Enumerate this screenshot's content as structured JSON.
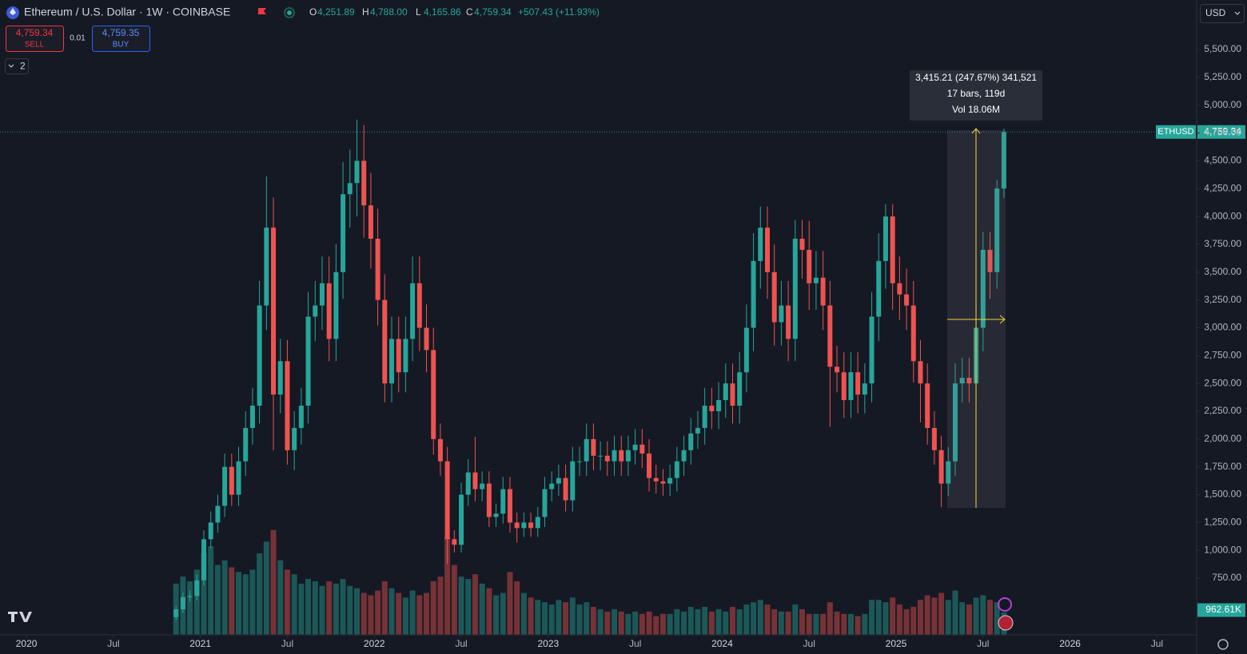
{
  "header": {
    "title": "Ethereum / U.S. Dollar · 1W · COINBASE",
    "ohlc_keys": [
      "O",
      "H",
      "L",
      "C"
    ],
    "ohlc_labels": [
      "4,251.89",
      "4,788.00",
      "4,165.86",
      "4,759.34"
    ],
    "change_label": "+507.43 (+11.93%)"
  },
  "trade": {
    "sell_price": "4,759.34",
    "sell": "SELL",
    "spread": "0.01",
    "buy_price": "4,759.35",
    "buy": "BUY"
  },
  "indicator_count": "2",
  "currency": "USD",
  "measure": [
    "3,415.21 (247.67%) 341,521",
    "17 bars, 119d",
    "Vol 18.06M"
  ],
  "chart_data": {
    "type": "candlestick",
    "symbol": "ETHUSD",
    "last_price_label": "4,759.34",
    "last_volume_label": "962.61K",
    "up_color": "#26a69a",
    "down_color": "#ef5350",
    "grid": false,
    "xlim": [
      2019.848,
      2026.728
    ],
    "ylim": [
      241,
      5945
    ],
    "volume_ylim": [
      0,
      4800
    ],
    "xticks": [
      2020,
      {
        "value": 2020.5,
        "label": "Jul"
      },
      2021,
      {
        "value": 2021.5,
        "label": "Jul"
      },
      2022,
      {
        "value": 2022.5,
        "label": "Jul"
      },
      2023,
      {
        "value": 2023.5,
        "label": "Jul"
      },
      2024,
      {
        "value": 2024.5,
        "label": "Jul"
      },
      2025,
      {
        "value": 2025.5,
        "label": "Jul"
      },
      2026,
      {
        "value": 2026.5,
        "label": "Jul"
      }
    ],
    "yticks": [
      {
        "value": 750,
        "label": "750.00"
      },
      {
        "value": 1000,
        "label": "1,000.00"
      },
      {
        "value": 1250,
        "label": "1,250.00"
      },
      {
        "value": 1500,
        "label": "1,500.00"
      },
      {
        "value": 1750,
        "label": "1,750.00"
      },
      {
        "value": 2000,
        "label": "2,000.00"
      },
      {
        "value": 2250,
        "label": "2,250.00"
      },
      {
        "value": 2500,
        "label": "2,500.00"
      },
      {
        "value": 2750,
        "label": "2,750.00"
      },
      {
        "value": 3000,
        "label": "3,000.00"
      },
      {
        "value": 3250,
        "label": "3,250.00"
      },
      {
        "value": 3500,
        "label": "3,500.00"
      },
      {
        "value": 3750,
        "label": "3,750.00"
      },
      {
        "value": 4000,
        "label": "4,000.00"
      },
      {
        "value": 4250,
        "label": "4,250.00"
      },
      {
        "value": 4500,
        "label": "4,500.00"
      },
      {
        "value": 4750,
        "label": "4,750.00"
      },
      {
        "value": 5000,
        "label": "5,000.00"
      },
      {
        "value": 5250,
        "label": "5,250.00"
      },
      {
        "value": 5500,
        "label": "5,500.00"
      }
    ],
    "x": [
      2020.86,
      2020.9,
      2020.94,
      2020.98,
      2021.02,
      2021.06,
      2021.1,
      2021.14,
      2021.18,
      2021.22,
      2021.26,
      2021.3,
      2021.34,
      2021.38,
      2021.42,
      2021.46,
      2021.5,
      2021.54,
      2021.58,
      2021.62,
      2021.66,
      2021.7,
      2021.74,
      2021.78,
      2021.82,
      2021.86,
      2021.9,
      2021.94,
      2021.98,
      2022.02,
      2022.06,
      2022.1,
      2022.14,
      2022.18,
      2022.22,
      2022.26,
      2022.3,
      2022.34,
      2022.38,
      2022.42,
      2022.46,
      2022.5,
      2022.54,
      2022.58,
      2022.62,
      2022.66,
      2022.7,
      2022.74,
      2022.78,
      2022.82,
      2022.86,
      2022.9,
      2022.94,
      2022.98,
      2023.02,
      2023.06,
      2023.1,
      2023.14,
      2023.18,
      2023.22,
      2023.26,
      2023.3,
      2023.34,
      2023.38,
      2023.42,
      2023.46,
      2023.5,
      2023.54,
      2023.58,
      2023.62,
      2023.66,
      2023.7,
      2023.74,
      2023.78,
      2023.82,
      2023.86,
      2023.9,
      2023.94,
      2023.98,
      2024.02,
      2024.06,
      2024.1,
      2024.14,
      2024.18,
      2024.22,
      2024.26,
      2024.3,
      2024.34,
      2024.38,
      2024.42,
      2024.46,
      2024.5,
      2024.54,
      2024.58,
      2024.62,
      2024.66,
      2024.7,
      2024.74,
      2024.78,
      2024.82,
      2024.86,
      2024.9,
      2024.94,
      2024.98,
      2025.02,
      2025.06,
      2025.1,
      2025.14,
      2025.18,
      2025.22,
      2025.26,
      2025.3,
      2025.34,
      2025.38,
      2025.42,
      2025.46,
      2025.5,
      2025.54,
      2025.58,
      2025.62
    ],
    "open": [
      400,
      470,
      580,
      590,
      730,
      1100,
      1250,
      1400,
      1750,
      1500,
      1800,
      2100,
      2300,
      3200,
      3900,
      2400,
      2700,
      1900,
      2100,
      2300,
      3100,
      3200,
      3400,
      2900,
      3500,
      4200,
      4300,
      4500,
      4100,
      3800,
      3250,
      2500,
      2900,
      2600,
      2900,
      3400,
      3000,
      2800,
      2000,
      1800,
      1100,
      1050,
      1500,
      1700,
      1550,
      1600,
      1300,
      1330,
      1550,
      1250,
      1200,
      1250,
      1200,
      1300,
      1550,
      1600,
      1650,
      1450,
      1800,
      1800,
      2000,
      1850,
      1850,
      1800,
      1900,
      1800,
      1900,
      1950,
      1870,
      1650,
      1620,
      1600,
      1650,
      1800,
      1900,
      2050,
      2100,
      2300,
      2250,
      2350,
      2500,
      2300,
      2600,
      3000,
      3600,
      3900,
      3500,
      3050,
      3200,
      2900,
      3800,
      3700,
      3400,
      3450,
      3200,
      2650,
      2600,
      2350,
      2600,
      2400,
      2500,
      3100,
      3600,
      4000,
      3400,
      3300,
      3200,
      2700,
      2500,
      2100,
      1900,
      1600,
      1800,
      2500,
      2550,
      2500,
      3000,
      3700,
      3500,
      4251.89
    ],
    "high": [
      500,
      620,
      640,
      780,
      1180,
      1350,
      1500,
      1870,
      1870,
      1930,
      2250,
      2460,
      3420,
      4360,
      4170,
      2900,
      2890,
      2250,
      2460,
      3320,
      3420,
      3640,
      3640,
      3750,
      4490,
      4600,
      4870,
      4820,
      4390,
      4070,
      3480,
      3100,
      3100,
      3100,
      3640,
      3640,
      3210,
      3000,
      2140,
      1930,
      1180,
      1610,
      1820,
      2020,
      1710,
      1710,
      1420,
      1660,
      1660,
      1340,
      1340,
      1340,
      1390,
      1660,
      1710,
      1770,
      1770,
      1930,
      1930,
      2140,
      2140,
      1980,
      1980,
      2030,
      2030,
      2030,
      2090,
      2090,
      2000,
      1770,
      1730,
      1770,
      1930,
      2030,
      2190,
      2250,
      2460,
      2460,
      2510,
      2680,
      2680,
      2780,
      3210,
      3850,
      4090,
      4090,
      3750,
      3420,
      3420,
      3970,
      3970,
      3960,
      3690,
      3690,
      3420,
      2840,
      2780,
      2780,
      2780,
      2680,
      3320,
      3850,
      4110,
      4110,
      3640,
      3530,
      3420,
      2890,
      2680,
      2250,
      2030,
      1930,
      2680,
      2730,
      2730,
      3210,
      3860,
      3860,
      4330,
      4788
    ],
    "low": [
      370,
      440,
      540,
      550,
      680,
      1020,
      1160,
      1300,
      1400,
      1400,
      1670,
      1950,
      2140,
      2980,
      1900,
      2230,
      1770,
      1720,
      1950,
      2140,
      2880,
      2980,
      2700,
      2700,
      3260,
      3900,
      4000,
      3810,
      3530,
      3020,
      2330,
      2330,
      2420,
      2420,
      2700,
      2790,
      2600,
      1860,
      1670,
      880,
      980,
      980,
      1400,
      1440,
      1440,
      1210,
      1210,
      1240,
      1160,
      1070,
      1120,
      1120,
      1120,
      1210,
      1440,
      1490,
      1350,
      1350,
      1670,
      1670,
      1720,
      1720,
      1670,
      1670,
      1670,
      1670,
      1770,
      1740,
      1530,
      1510,
      1490,
      1490,
      1530,
      1670,
      1770,
      1910,
      1950,
      2090,
      2090,
      2190,
      2140,
      2140,
      2420,
      2790,
      3350,
      3260,
      2840,
      2840,
      2700,
      2700,
      3440,
      3160,
      3160,
      2980,
      2110,
      2420,
      2190,
      2190,
      2230,
      2230,
      2330,
      2880,
      3350,
      3160,
      3070,
      2980,
      2510,
      2150,
      1950,
      1770,
      1390,
      1490,
      1670,
      2330,
      2330,
      2330,
      2790,
      3260,
      3350,
      4165.86
    ],
    "close": [
      470,
      580,
      590,
      730,
      1100,
      1250,
      1400,
      1750,
      1500,
      1800,
      2100,
      2300,
      3200,
      3900,
      2400,
      2700,
      1900,
      2100,
      2300,
      3100,
      3200,
      3400,
      2900,
      3500,
      4200,
      4300,
      4500,
      4100,
      3800,
      3250,
      2500,
      2900,
      2600,
      2900,
      3400,
      3000,
      2800,
      2000,
      1800,
      1100,
      1050,
      1500,
      1700,
      1550,
      1600,
      1300,
      1330,
      1550,
      1250,
      1200,
      1250,
      1200,
      1300,
      1550,
      1600,
      1650,
      1450,
      1800,
      1800,
      2000,
      1850,
      1850,
      1800,
      1900,
      1800,
      1900,
      1950,
      1870,
      1650,
      1620,
      1600,
      1650,
      1800,
      1900,
      2050,
      2100,
      2300,
      2250,
      2350,
      2500,
      2300,
      2600,
      3000,
      3600,
      3900,
      3500,
      3050,
      3200,
      2900,
      3800,
      3700,
      3400,
      3450,
      3200,
      2650,
      2600,
      2350,
      2600,
      2400,
      2500,
      3100,
      3600,
      4000,
      3400,
      3300,
      3200,
      2700,
      2500,
      2100,
      1900,
      1600,
      1800,
      2500,
      2550,
      2500,
      3000,
      3700,
      3500,
      4251.89,
      4759.34
    ],
    "volume": [
      2200,
      2500,
      2300,
      2800,
      3500,
      3800,
      3000,
      3200,
      2900,
      2700,
      2600,
      2800,
      3500,
      4000,
      4500,
      3200,
      2800,
      2600,
      2200,
      2400,
      2300,
      2100,
      2300,
      2200,
      2400,
      2100,
      2000,
      1800,
      1700,
      1900,
      2300,
      2000,
      1800,
      1600,
      1900,
      1700,
      1800,
      2300,
      2500,
      4200,
      3000,
      2500,
      2400,
      2600,
      2200,
      2000,
      1700,
      1800,
      2700,
      2300,
      1800,
      1600,
      1500,
      1400,
      1300,
      1500,
      1400,
      1600,
      1300,
      1400,
      1200,
      1100,
      1000,
      1100,
      1000,
      900,
      1000,
      900,
      1000,
      800,
      900,
      900,
      1100,
      1000,
      1200,
      1100,
      1200,
      1000,
      1100,
      1000,
      1200,
      1100,
      1300,
      1400,
      1500,
      1300,
      1100,
      1000,
      1000,
      1300,
      1100,
      900,
      900,
      900,
      1400,
      1000,
      900,
      900,
      800,
      900,
      1500,
      1500,
      1400,
      1600,
      1300,
      1100,
      1200,
      1500,
      1700,
      1600,
      1800,
      1500,
      1900,
      1400,
      1300,
      1600,
      1700,
      1500,
      1400,
      962.61
    ]
  }
}
